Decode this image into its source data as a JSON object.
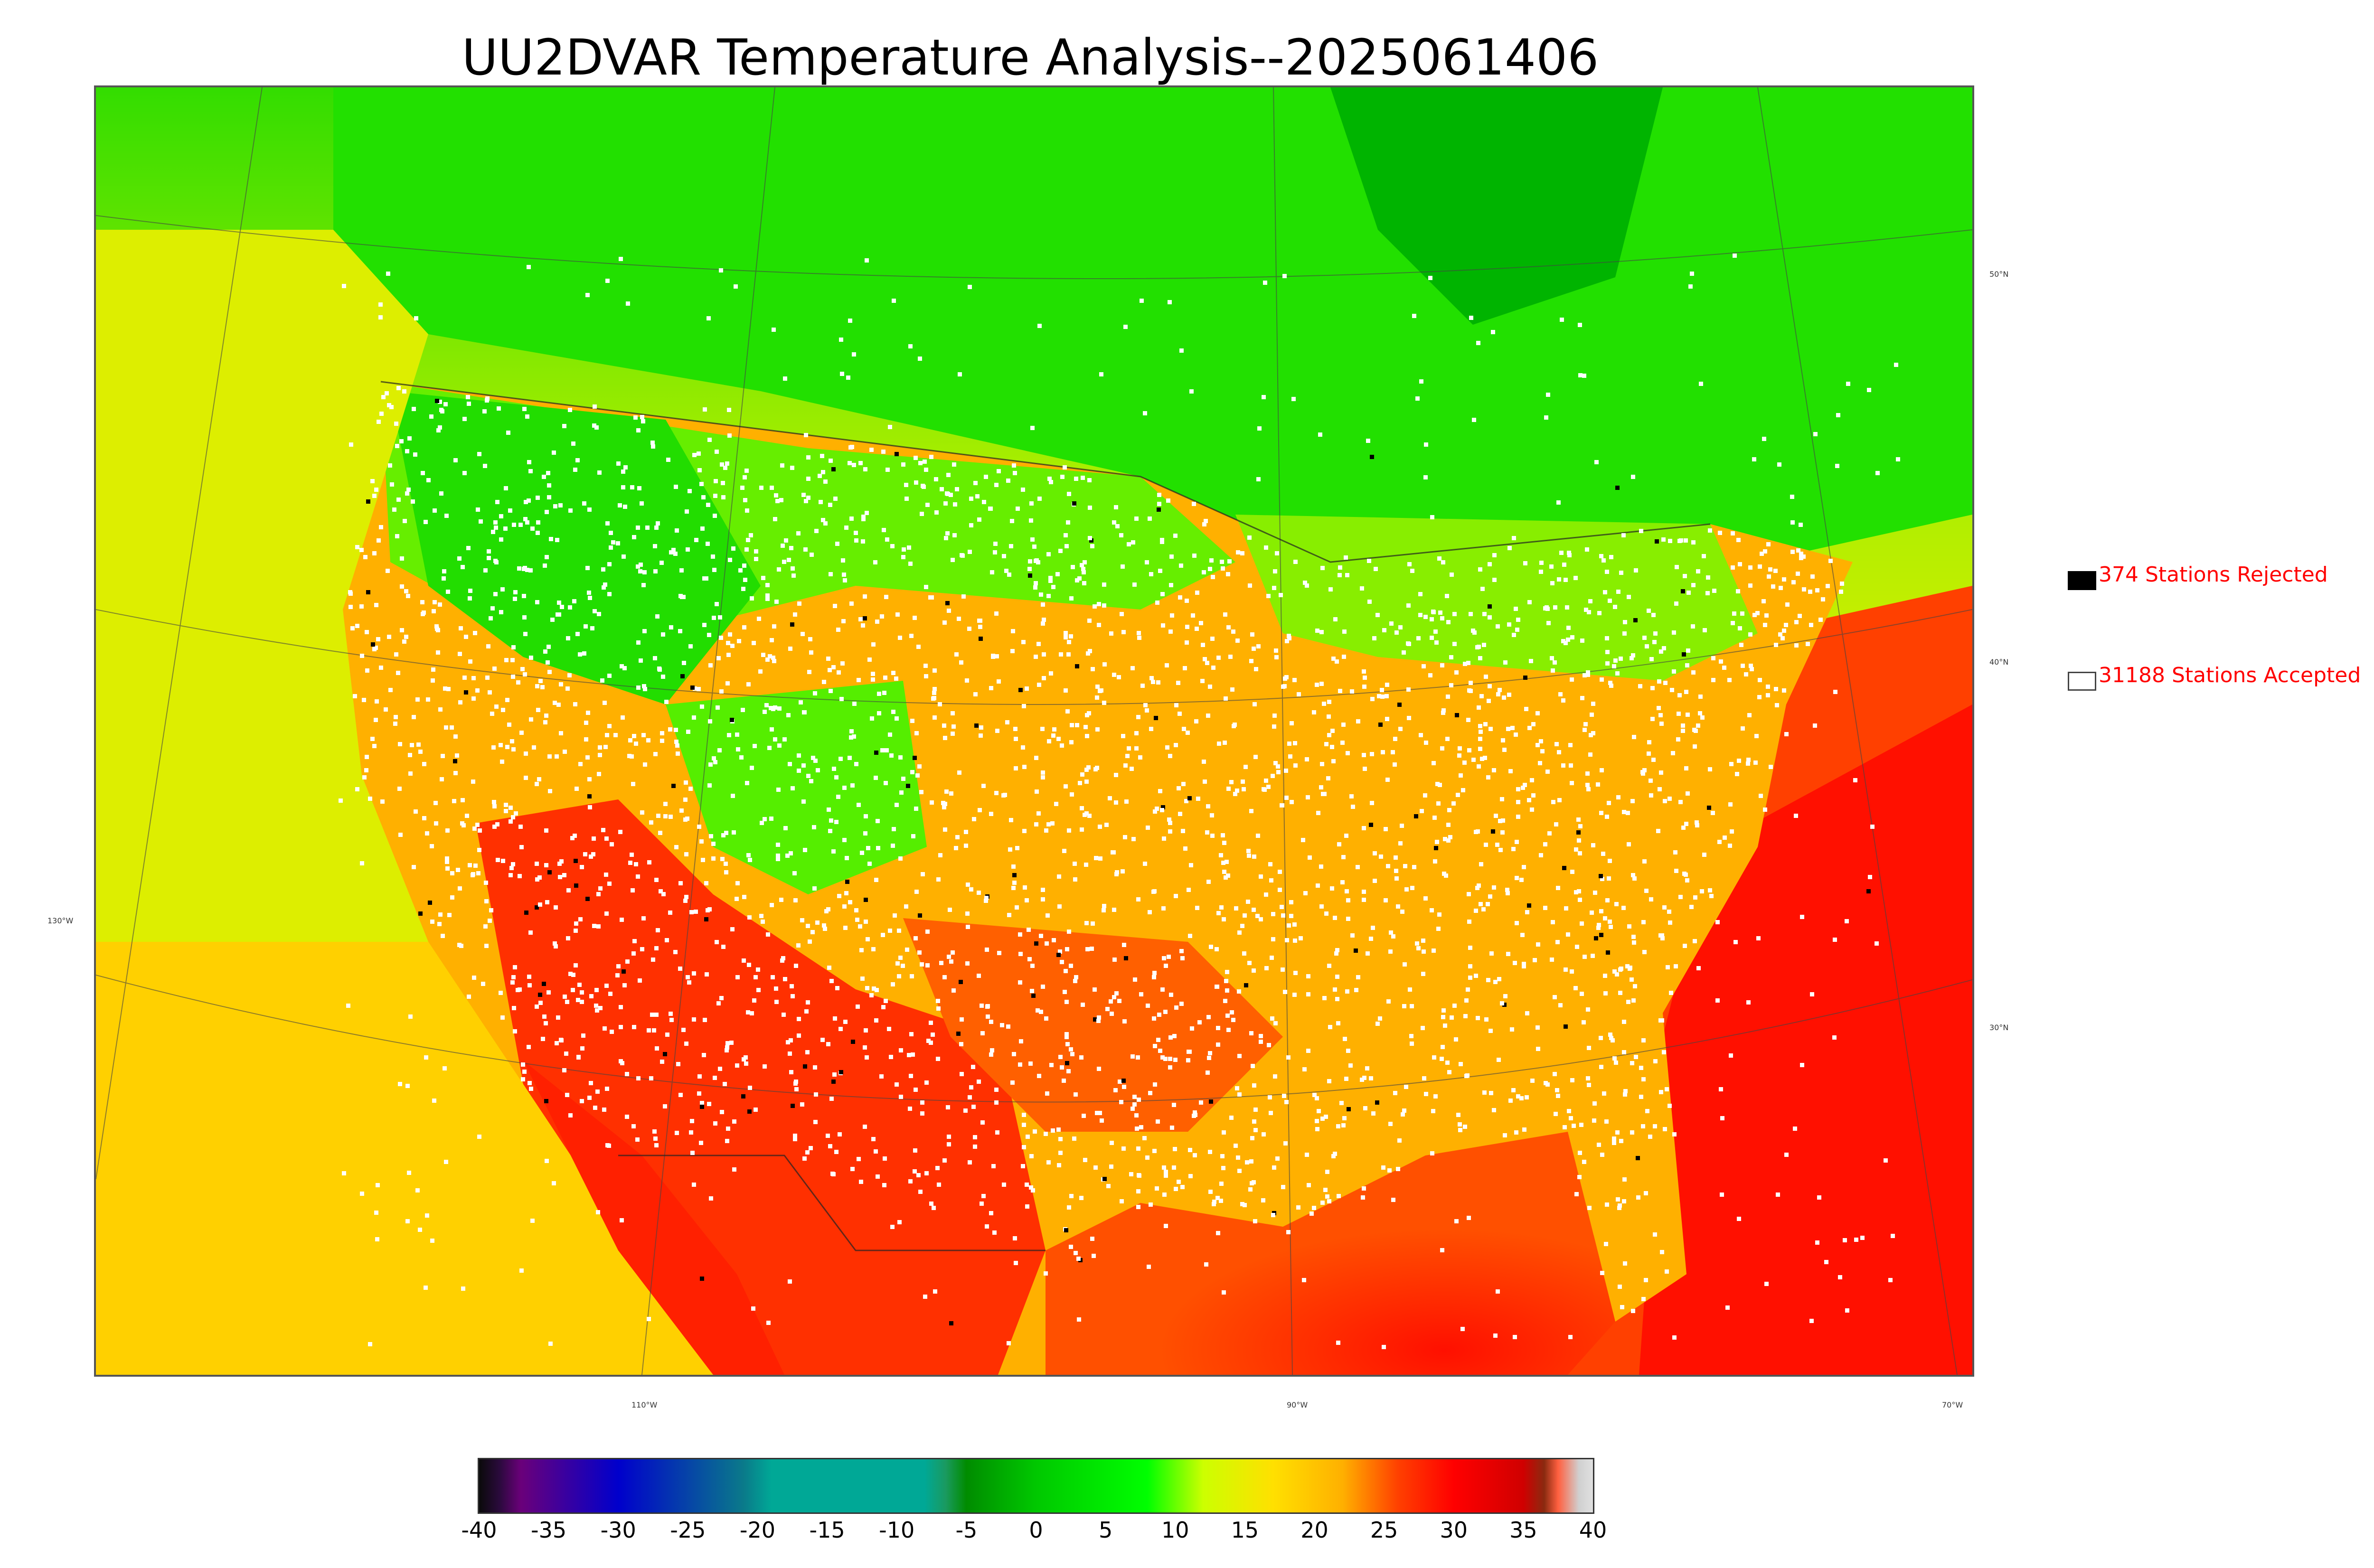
{
  "title": "UU2DVAR Temperature Analysis--2025061406",
  "legend": {
    "rejected": {
      "label": "374 Stations Rejected",
      "swatch_color": "#000000"
    },
    "accepted": {
      "label": "31188 Stations Accepted",
      "swatch_color": "#ffffff"
    }
  },
  "lat_labels": [
    "50°N",
    "40°N",
    "30°N"
  ],
  "lon_labels": [
    "130°W",
    "110°W",
    "90°W",
    "70°W"
  ],
  "colorbar": {
    "ticks": [
      "-40",
      "-35",
      "-30",
      "-25",
      "-20",
      "-15",
      "-10",
      "-5",
      "0",
      "5",
      "10",
      "15",
      "20",
      "25",
      "30",
      "35",
      "40"
    ],
    "stops": [
      {
        "value": -40,
        "color": "#0a0a0a"
      },
      {
        "value": -38.5,
        "color": "#2b0a3d"
      },
      {
        "value": -37,
        "color": "#6a007a"
      },
      {
        "value": -30,
        "color": "#0000cc"
      },
      {
        "value": -21,
        "color": "#0a7a8a"
      },
      {
        "value": -19,
        "color": "#00a896"
      },
      {
        "value": -8,
        "color": "#00a896"
      },
      {
        "value": -6.5,
        "color": "#1a9a60"
      },
      {
        "value": -5,
        "color": "#008c00"
      },
      {
        "value": 0,
        "color": "#00c800"
      },
      {
        "value": 8,
        "color": "#00ff00"
      },
      {
        "value": 12,
        "color": "#ccff00"
      },
      {
        "value": 17,
        "color": "#ffe000"
      },
      {
        "value": 22,
        "color": "#ffb000"
      },
      {
        "value": 26,
        "color": "#ff4000"
      },
      {
        "value": 30,
        "color": "#ff0000"
      },
      {
        "value": 35,
        "color": "#d00000"
      },
      {
        "value": 36.5,
        "color": "#8a2a10"
      },
      {
        "value": 37.5,
        "color": "#ff6040"
      },
      {
        "value": 39,
        "color": "#d0d0d0"
      },
      {
        "value": 40,
        "color": "#e0e0e0"
      }
    ]
  },
  "colors": {
    "cold": "#00c800",
    "cool": "#00ff00",
    "mild": "#ccff00",
    "warm": "#ffcc00",
    "hot": "#ff8000",
    "very_hot": "#ff0000"
  }
}
